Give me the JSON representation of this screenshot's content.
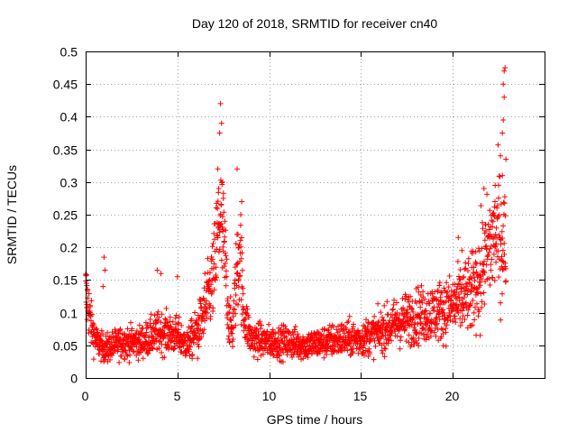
{
  "chart_data": {
    "type": "scatter",
    "title": "Day 120 of 2018, SRMTID for receiver cn40",
    "xlabel": "GPS time / hours",
    "ylabel": "SRMTID / TECUs",
    "xlim": [
      0,
      25
    ],
    "ylim": [
      0,
      0.5
    ],
    "x_ticks": [
      0,
      5,
      10,
      15,
      20
    ],
    "x_tick_labels": [
      "0",
      "5",
      "10",
      "15",
      "20"
    ],
    "y_ticks": [
      0,
      0.05,
      0.1,
      0.15,
      0.2,
      0.25,
      0.3,
      0.35,
      0.4,
      0.45,
      0.5
    ],
    "y_tick_labels": [
      "0",
      "0.05",
      "0.1",
      "0.15",
      "0.2",
      "0.25",
      "0.3",
      "0.35",
      "0.4",
      "0.45",
      "0.5"
    ],
    "grid": true,
    "marker": "plus",
    "series": [
      {
        "name": "SRMTID",
        "color": "#ff0000",
        "trend": [
          [
            0.0,
            0.13
          ],
          [
            0.15,
            0.11
          ],
          [
            0.3,
            0.08
          ],
          [
            0.6,
            0.055
          ],
          [
            1.0,
            0.045
          ],
          [
            2.0,
            0.055
          ],
          [
            3.0,
            0.055
          ],
          [
            4.0,
            0.07
          ],
          [
            5.0,
            0.065
          ],
          [
            5.5,
            0.05
          ],
          [
            6.0,
            0.07
          ],
          [
            6.5,
            0.1
          ],
          [
            7.0,
            0.16
          ],
          [
            7.3,
            0.25
          ],
          [
            7.6,
            0.18
          ],
          [
            7.8,
            0.09
          ],
          [
            8.0,
            0.07
          ],
          [
            8.2,
            0.15
          ],
          [
            8.4,
            0.2
          ],
          [
            8.6,
            0.1
          ],
          [
            9.0,
            0.06
          ],
          [
            10.0,
            0.055
          ],
          [
            11.0,
            0.055
          ],
          [
            12.0,
            0.05
          ],
          [
            13.0,
            0.055
          ],
          [
            14.0,
            0.06
          ],
          [
            15.0,
            0.06
          ],
          [
            16.0,
            0.07
          ],
          [
            17.0,
            0.085
          ],
          [
            18.0,
            0.095
          ],
          [
            19.0,
            0.1
          ],
          [
            20.0,
            0.11
          ],
          [
            20.5,
            0.12
          ],
          [
            21.0,
            0.13
          ],
          [
            21.5,
            0.16
          ],
          [
            22.0,
            0.2
          ],
          [
            22.3,
            0.22
          ],
          [
            22.6,
            0.22
          ],
          [
            22.9,
            0.2
          ]
        ],
        "outliers": [
          [
            7.35,
            0.42
          ],
          [
            7.4,
            0.39
          ],
          [
            7.3,
            0.375
          ],
          [
            7.2,
            0.32
          ],
          [
            7.45,
            0.3
          ],
          [
            7.5,
            0.275
          ],
          [
            7.25,
            0.29
          ],
          [
            8.25,
            0.32
          ],
          [
            8.5,
            0.27
          ],
          [
            8.45,
            0.25
          ],
          [
            8.3,
            0.22
          ],
          [
            1.0,
            0.185
          ],
          [
            1.05,
            0.165
          ],
          [
            0.95,
            0.14
          ],
          [
            3.9,
            0.165
          ],
          [
            4.1,
            0.16
          ],
          [
            5.0,
            0.155
          ],
          [
            6.5,
            0.16
          ],
          [
            22.85,
            0.475
          ],
          [
            22.8,
            0.47
          ],
          [
            22.75,
            0.45
          ],
          [
            22.8,
            0.43
          ],
          [
            22.75,
            0.395
          ],
          [
            22.7,
            0.375
          ],
          [
            22.6,
            0.34
          ],
          [
            22.9,
            0.335
          ],
          [
            22.7,
            0.31
          ],
          [
            22.5,
            0.295
          ],
          [
            21.7,
            0.29
          ],
          [
            22.3,
            0.27
          ],
          [
            20.3,
            0.215
          ],
          [
            20.5,
            0.195
          ],
          [
            21.3,
            0.175
          ],
          [
            21.5,
            0.065
          ],
          [
            22.6,
            0.115
          ],
          [
            21.0,
            0.08
          ],
          [
            0.05,
            0.145
          ],
          [
            0.1,
            0.135
          ],
          [
            6.1,
            0.03
          ],
          [
            5.8,
            0.03
          ],
          [
            1.2,
            0.025
          ]
        ]
      }
    ]
  }
}
